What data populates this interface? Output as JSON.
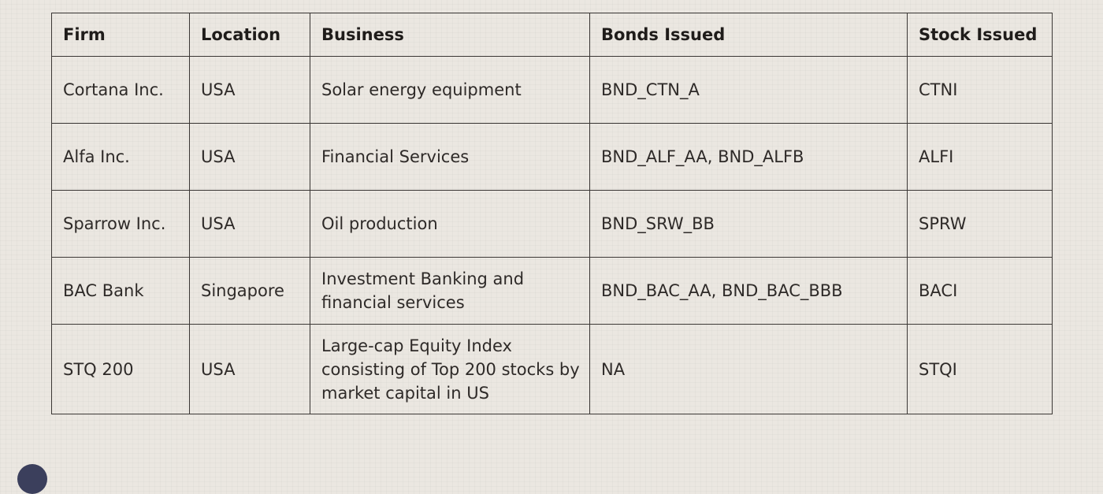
{
  "table": {
    "header": [
      "Firm",
      "Location",
      "Business",
      "Bonds Issued",
      "Stock Issued"
    ],
    "rows": [
      [
        "Cortana Inc.",
        "USA",
        "Solar energy equipment",
        "BND_CTN_A",
        "CTNI"
      ],
      [
        "Alfa Inc.",
        "USA",
        "Financial Services",
        "BND_ALF_AA, BND_ALFB",
        "ALFI"
      ],
      [
        "Sparrow Inc.",
        "USA",
        "Oil production",
        "BND_SRW_BB",
        "SPRW"
      ],
      [
        "BAC Bank",
        "Singapore",
        "Investment Banking and financial services",
        "BND_BAC_AA, BND_BAC_BBB",
        "BACI"
      ],
      [
        "STQ 200",
        "USA",
        "Large-cap Equity Index consisting of Top 200 stocks by market capital in US",
        "NA",
        "STQI"
      ]
    ]
  }
}
